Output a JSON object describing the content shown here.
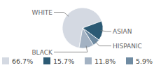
{
  "chart_data": {
    "type": "pie",
    "categories": [
      "WHITE",
      "ASIAN",
      "HISPANIC",
      "BLACK"
    ],
    "values": [
      66.7,
      15.7,
      5.9,
      11.8
    ],
    "value_labels": [
      "66.7%",
      "15.7%",
      "5.9%",
      "11.8%"
    ],
    "colors": [
      "#d4d9e2",
      "#2c5a74",
      "#6f8ba2",
      "#a3b2c3"
    ],
    "legend": "bottom"
  }
}
